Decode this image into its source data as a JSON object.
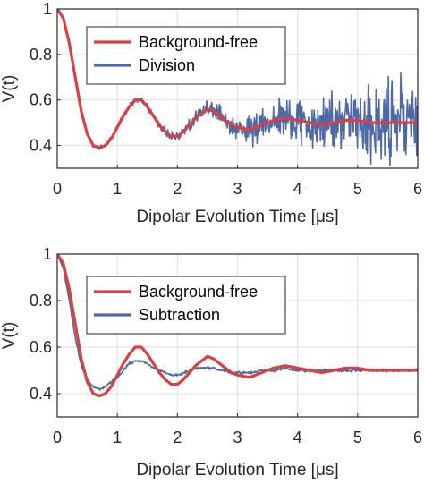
{
  "chart_data": [
    {
      "type": "line",
      "xlabel": "Dipolar Evolution Time [μs]",
      "ylabel": "V(t)",
      "xlim": [
        0,
        6
      ],
      "ylim": [
        0.3,
        1
      ],
      "xticks": [
        "0",
        "1",
        "2",
        "3",
        "4",
        "5",
        "6"
      ],
      "yticks": [
        "0.4",
        "0.6",
        "0.8",
        "1"
      ],
      "grid": true,
      "legend_position": "top-left",
      "series": [
        {
          "name": "Background-free",
          "color": "#d9403f",
          "x": [
            0,
            0.1,
            0.2,
            0.3,
            0.4,
            0.5,
            0.6,
            0.7,
            0.8,
            0.9,
            1.0,
            1.1,
            1.2,
            1.3,
            1.4,
            1.5,
            1.6,
            1.7,
            1.8,
            1.9,
            2.0,
            2.1,
            2.2,
            2.3,
            2.4,
            2.5,
            2.6,
            2.7,
            2.8,
            2.9,
            3.0,
            3.2,
            3.4,
            3.6,
            3.8,
            4.0,
            4.2,
            4.4,
            4.6,
            4.8,
            5.0,
            5.2,
            5.4,
            5.6,
            5.8,
            6.0
          ],
          "values": [
            1.0,
            0.96,
            0.85,
            0.7,
            0.55,
            0.45,
            0.4,
            0.39,
            0.4,
            0.43,
            0.48,
            0.53,
            0.57,
            0.6,
            0.6,
            0.57,
            0.53,
            0.49,
            0.46,
            0.44,
            0.44,
            0.46,
            0.49,
            0.52,
            0.54,
            0.56,
            0.55,
            0.53,
            0.51,
            0.49,
            0.48,
            0.47,
            0.49,
            0.51,
            0.52,
            0.51,
            0.5,
            0.49,
            0.5,
            0.51,
            0.51,
            0.5,
            0.5,
            0.5,
            0.5,
            0.5
          ]
        },
        {
          "name": "Division",
          "color": "#4e6aa6",
          "x": [
            0,
            0.1,
            0.2,
            0.3,
            0.4,
            0.5,
            0.6,
            0.7,
            0.8,
            0.9,
            1.0,
            1.1,
            1.2,
            1.3,
            1.4,
            1.5,
            1.6,
            1.7,
            1.8,
            1.9,
            2.0,
            2.1,
            2.2,
            2.3,
            2.4,
            2.5,
            2.6,
            2.7,
            2.8,
            2.9,
            3.0,
            3.2,
            3.4,
            3.6,
            3.8,
            4.0,
            4.2,
            4.4,
            4.6,
            4.8,
            5.0,
            5.2,
            5.4,
            5.6,
            5.8,
            6.0
          ],
          "values": [
            1.0,
            0.96,
            0.85,
            0.7,
            0.55,
            0.45,
            0.4,
            0.39,
            0.4,
            0.43,
            0.48,
            0.53,
            0.57,
            0.6,
            0.6,
            0.57,
            0.53,
            0.49,
            0.46,
            0.44,
            0.44,
            0.46,
            0.49,
            0.52,
            0.54,
            0.56,
            0.55,
            0.53,
            0.51,
            0.49,
            0.48,
            0.47,
            0.49,
            0.51,
            0.52,
            0.51,
            0.5,
            0.49,
            0.5,
            0.51,
            0.51,
            0.5,
            0.5,
            0.5,
            0.5,
            0.5
          ],
          "noise_amplitude": [
            [
              0,
              0.005
            ],
            [
              1,
              0.01
            ],
            [
              2,
              0.02
            ],
            [
              3,
              0.04
            ],
            [
              4,
              0.08
            ],
            [
              5,
              0.13
            ],
            [
              6,
              0.16
            ]
          ]
        }
      ]
    },
    {
      "type": "line",
      "xlabel": "Dipolar Evolution Time [μs]",
      "ylabel": "V(t)",
      "xlim": [
        0,
        6
      ],
      "ylim": [
        0.3,
        1
      ],
      "xticks": [
        "0",
        "1",
        "2",
        "3",
        "4",
        "5",
        "6"
      ],
      "yticks": [
        "0.4",
        "0.6",
        "0.8",
        "1"
      ],
      "grid": true,
      "legend_position": "top-left",
      "series": [
        {
          "name": "Background-free",
          "color": "#d9403f",
          "x": [
            0,
            0.1,
            0.2,
            0.3,
            0.4,
            0.5,
            0.6,
            0.7,
            0.8,
            0.9,
            1.0,
            1.1,
            1.2,
            1.3,
            1.4,
            1.5,
            1.6,
            1.7,
            1.8,
            1.9,
            2.0,
            2.1,
            2.2,
            2.3,
            2.4,
            2.5,
            2.6,
            2.7,
            2.8,
            2.9,
            3.0,
            3.2,
            3.4,
            3.6,
            3.8,
            4.0,
            4.2,
            4.4,
            4.6,
            4.8,
            5.0,
            5.2,
            5.4,
            5.6,
            5.8,
            6.0
          ],
          "values": [
            1.0,
            0.96,
            0.85,
            0.7,
            0.55,
            0.45,
            0.4,
            0.39,
            0.4,
            0.43,
            0.48,
            0.53,
            0.57,
            0.6,
            0.6,
            0.57,
            0.53,
            0.49,
            0.46,
            0.44,
            0.44,
            0.46,
            0.49,
            0.52,
            0.54,
            0.56,
            0.55,
            0.53,
            0.51,
            0.49,
            0.48,
            0.47,
            0.49,
            0.51,
            0.52,
            0.51,
            0.5,
            0.49,
            0.5,
            0.51,
            0.51,
            0.5,
            0.5,
            0.5,
            0.5,
            0.5
          ]
        },
        {
          "name": "Subtraction",
          "color": "#4e6aa6",
          "x": [
            0,
            0.1,
            0.2,
            0.3,
            0.4,
            0.5,
            0.6,
            0.7,
            0.8,
            0.9,
            1.0,
            1.1,
            1.2,
            1.3,
            1.4,
            1.5,
            1.6,
            1.7,
            1.8,
            1.9,
            2.0,
            2.1,
            2.2,
            2.3,
            2.4,
            2.5,
            2.6,
            2.7,
            2.8,
            2.9,
            3.0,
            3.2,
            3.4,
            3.6,
            3.8,
            4.0,
            4.2,
            4.4,
            4.6,
            4.8,
            5.0,
            5.2,
            5.4,
            5.6,
            5.8,
            6.0
          ],
          "values": [
            1.0,
            0.94,
            0.8,
            0.64,
            0.52,
            0.46,
            0.43,
            0.42,
            0.43,
            0.45,
            0.47,
            0.5,
            0.53,
            0.54,
            0.54,
            0.53,
            0.51,
            0.5,
            0.49,
            0.48,
            0.48,
            0.49,
            0.5,
            0.51,
            0.51,
            0.51,
            0.51,
            0.5,
            0.5,
            0.49,
            0.49,
            0.49,
            0.5,
            0.5,
            0.51,
            0.5,
            0.5,
            0.5,
            0.5,
            0.5,
            0.5,
            0.5,
            0.5,
            0.5,
            0.5,
            0.5
          ],
          "noise_amplitude": [
            [
              0,
              0.004
            ],
            [
              6,
              0.006
            ]
          ]
        }
      ]
    }
  ]
}
